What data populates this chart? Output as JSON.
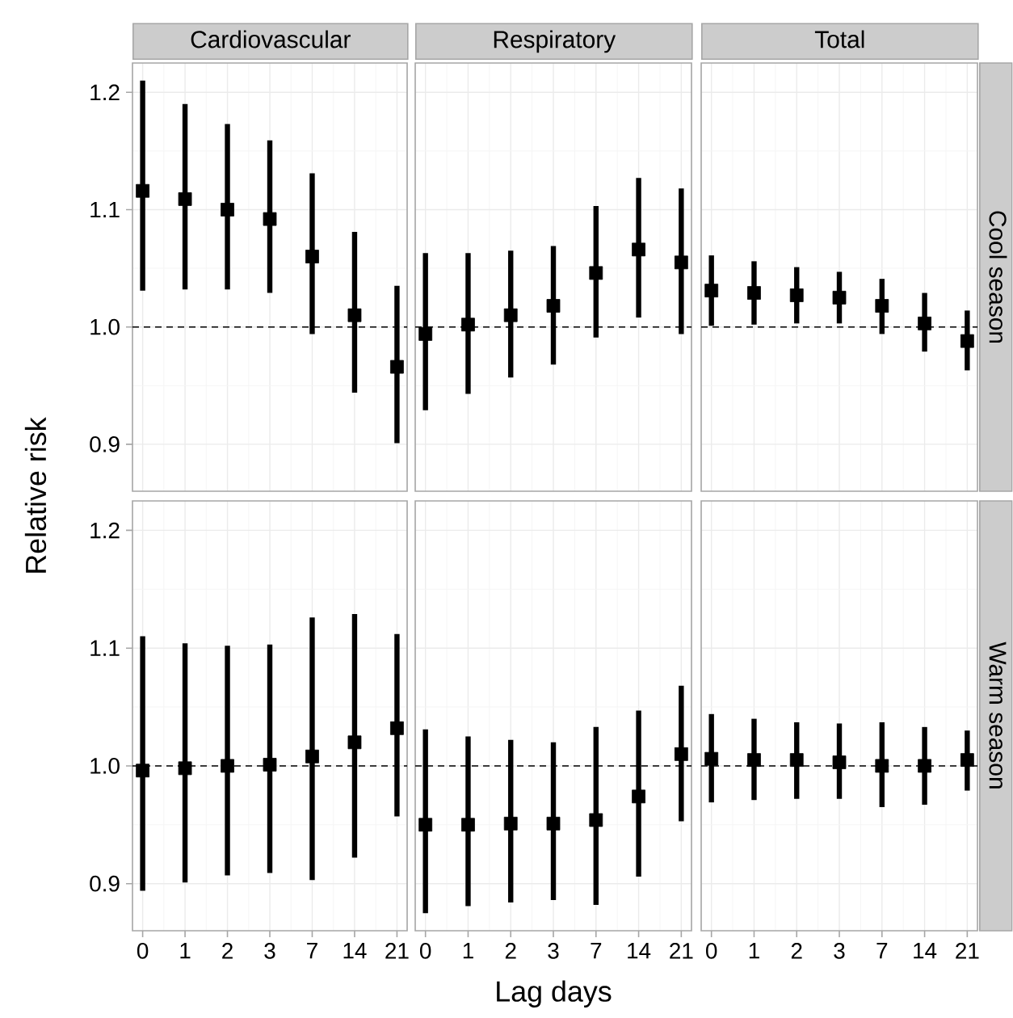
{
  "chart_data": [
    {
      "type": "scatter",
      "title": "Cardiovascular",
      "ylabel": "Relative risk",
      "categories": [
        "0",
        "1",
        "2",
        "3",
        "7",
        "14",
        "21"
      ],
      "values": [
        1.116,
        1.109,
        1.1,
        1.092,
        1.06,
        1.01,
        0.966
      ],
      "errors": [
        [
          1.031,
          1.21
        ],
        [
          1.032,
          1.19
        ],
        [
          1.032,
          1.173
        ],
        [
          1.029,
          1.159
        ],
        [
          0.994,
          1.131
        ],
        [
          0.944,
          1.081
        ],
        [
          0.901,
          1.035
        ]
      ],
      "color": "#000000",
      "marker": "square",
      "grid": true,
      "tick_labels": "y",
      "ylim": [
        0.86,
        1.225
      ],
      "yticks": [
        0.9,
        {
          "value": 1.0,
          "label": "1.0"
        },
        1.1,
        1.2
      ],
      "ref_lines": [
        {
          "axis": "y",
          "value": 1.0,
          "color": "#000000",
          "line_style": "dashed"
        }
      ]
    },
    {
      "type": "scatter",
      "title": "Respiratory",
      "categories": [
        "0",
        "1",
        "2",
        "3",
        "7",
        "14",
        "21"
      ],
      "values": [
        0.994,
        1.002,
        1.01,
        1.018,
        1.046,
        1.066,
        1.055
      ],
      "errors": [
        [
          0.929,
          1.063
        ],
        [
          0.943,
          1.063
        ],
        [
          0.957,
          1.065
        ],
        [
          0.968,
          1.069
        ],
        [
          0.991,
          1.103
        ],
        [
          1.008,
          1.127
        ],
        [
          0.994,
          1.118
        ]
      ],
      "color": "#000000",
      "marker": "square",
      "grid": true,
      "tick_labels": false,
      "ylim": [
        0.86,
        1.225
      ],
      "yticks": [
        0.9,
        1.0,
        1.1,
        1.2
      ],
      "ref_lines": [
        {
          "axis": "y",
          "value": 1.0,
          "color": "#000000",
          "line_style": "dashed"
        }
      ]
    },
    {
      "type": "scatter",
      "title": "Total",
      "y2label": "Cool season",
      "categories": [
        "0",
        "1",
        "2",
        "3",
        "7",
        "14",
        "21"
      ],
      "values": [
        1.031,
        1.029,
        1.027,
        1.025,
        1.018,
        1.003,
        0.988
      ],
      "errors": [
        [
          1.001,
          1.061
        ],
        [
          1.002,
          1.056
        ],
        [
          1.003,
          1.051
        ],
        [
          1.003,
          1.047
        ],
        [
          0.994,
          1.041
        ],
        [
          0.979,
          1.029
        ],
        [
          0.963,
          1.014
        ]
      ],
      "color": "#000000",
      "marker": "square",
      "grid": true,
      "tick_labels": false,
      "ylim": [
        0.86,
        1.225
      ],
      "yticks": [
        0.9,
        1.0,
        1.1,
        1.2
      ],
      "ref_lines": [
        {
          "axis": "y",
          "value": 1.0,
          "color": "#000000",
          "line_style": "dashed"
        }
      ]
    },
    {
      "type": "scatter",
      "categories": [
        "0",
        "1",
        "2",
        "3",
        "7",
        "14",
        "21"
      ],
      "values": [
        0.996,
        0.998,
        1.0,
        1.001,
        1.008,
        1.02,
        1.032
      ],
      "errors": [
        [
          0.894,
          1.11
        ],
        [
          0.901,
          1.104
        ],
        [
          0.907,
          1.102
        ],
        [
          0.909,
          1.103
        ],
        [
          0.903,
          1.126
        ],
        [
          0.922,
          1.129
        ],
        [
          0.957,
          1.112
        ]
      ],
      "color": "#000000",
      "marker": "square",
      "grid": true,
      "ylim": [
        0.86,
        1.225
      ],
      "yticks": [
        0.9,
        {
          "value": 1.0,
          "label": "1.0"
        },
        1.1,
        1.2
      ],
      "ref_lines": [
        {
          "axis": "y",
          "value": 1.0,
          "color": "#000000",
          "line_style": "dashed"
        }
      ]
    },
    {
      "type": "scatter",
      "xlabel": "Lag days",
      "categories": [
        "0",
        "1",
        "2",
        "3",
        "7",
        "14",
        "21"
      ],
      "values": [
        0.95,
        0.95,
        0.951,
        0.951,
        0.954,
        0.974,
        1.01
      ],
      "errors": [
        [
          0.875,
          1.031
        ],
        [
          0.881,
          1.025
        ],
        [
          0.884,
          1.022
        ],
        [
          0.886,
          1.02
        ],
        [
          0.882,
          1.033
        ],
        [
          0.906,
          1.047
        ],
        [
          0.953,
          1.068
        ]
      ],
      "color": "#000000",
      "marker": "square",
      "grid": true,
      "tick_labels": "x",
      "ylim": [
        0.86,
        1.225
      ],
      "yticks": [
        0.9,
        1.0,
        1.1,
        1.2
      ],
      "ref_lines": [
        {
          "axis": "y",
          "value": 1.0,
          "color": "#000000",
          "line_style": "dashed"
        }
      ]
    },
    {
      "type": "scatter",
      "y2label": "Warm season",
      "categories": [
        "0",
        "1",
        "2",
        "3",
        "7",
        "14",
        "21"
      ],
      "values": [
        1.006,
        1.005,
        1.005,
        1.003,
        1.0,
        1.0,
        1.005
      ],
      "errors": [
        [
          0.969,
          1.044
        ],
        [
          0.971,
          1.04
        ],
        [
          0.972,
          1.037
        ],
        [
          0.972,
          1.036
        ],
        [
          0.965,
          1.037
        ],
        [
          0.967,
          1.033
        ],
        [
          0.979,
          1.03
        ]
      ],
      "color": "#000000",
      "marker": "square",
      "grid": true,
      "tick_labels": "x",
      "ylim": [
        0.86,
        1.225
      ],
      "yticks": [
        0.9,
        1.0,
        1.1,
        1.2
      ],
      "ref_lines": [
        {
          "axis": "y",
          "value": 1.0,
          "color": "#000000",
          "line_style": "dashed"
        }
      ]
    }
  ]
}
